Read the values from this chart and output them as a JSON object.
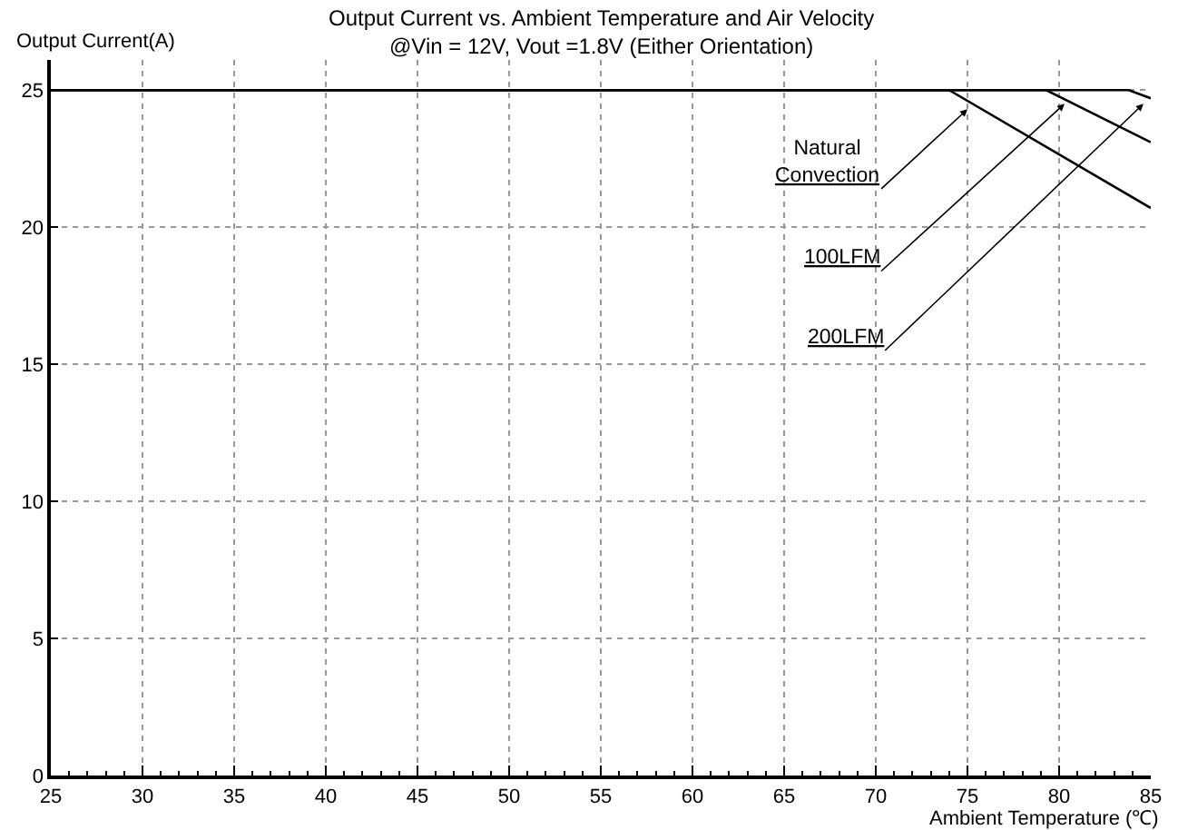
{
  "chart_data": {
    "type": "line",
    "title": "Output Current vs. Ambient Temperature and Air Velocity",
    "subtitle": "@Vin = 12V, Vout =1.8V (Either Orientation)",
    "xlabel": "Ambient Temperature (℃)",
    "ylabel": "Output Current(A)",
    "series": [
      {
        "color": "#000000",
        "x": [
          25,
          74.0,
          85
        ],
        "values": [
          25,
          25,
          20.7
        ]
      },
      {
        "color": "#000000",
        "x": [
          25,
          79.3,
          85
        ],
        "values": [
          25,
          25,
          23.1
        ]
      },
      {
        "color": "#000000",
        "x": [
          25,
          83.8,
          85
        ],
        "values": [
          25,
          25,
          24.7
        ]
      }
    ],
    "annotations": [
      {
        "text": "Natural\nConvection",
        "x": 75.0,
        "y": 24.3
      },
      {
        "text": "100LFM",
        "x": 80.3,
        "y": 24.5
      },
      {
        "text": "200LFM",
        "x": 84.6,
        "y": 24.5
      }
    ],
    "xlim": [
      25,
      85
    ],
    "ylim": [
      0,
      26.1
    ],
    "xticks": [
      25,
      {
        "value": 26,
        "label": null
      },
      {
        "value": 27,
        "label": null
      },
      {
        "value": 28,
        "label": null
      },
      {
        "value": 29,
        "label": null
      },
      30,
      {
        "value": 31,
        "label": null
      },
      {
        "value": 32,
        "label": null
      },
      {
        "value": 33,
        "label": null
      },
      {
        "value": 34,
        "label": null
      },
      35,
      {
        "value": 36,
        "label": null
      },
      {
        "value": 37,
        "label": null
      },
      {
        "value": 38,
        "label": null
      },
      {
        "value": 39,
        "label": null
      },
      40,
      {
        "value": 41,
        "label": null
      },
      {
        "value": 42,
        "label": null
      },
      {
        "value": 43,
        "label": null
      },
      {
        "value": 44,
        "label": null
      },
      45,
      {
        "value": 46,
        "label": null
      },
      {
        "value": 47,
        "label": null
      },
      {
        "value": 48,
        "label": null
      },
      {
        "value": 49,
        "label": null
      },
      50,
      {
        "value": 51,
        "label": null
      },
      {
        "value": 52,
        "label": null
      },
      {
        "value": 53,
        "label": null
      },
      {
        "value": 54,
        "label": null
      },
      55,
      {
        "value": 56,
        "label": null
      },
      {
        "value": 57,
        "label": null
      },
      {
        "value": 58,
        "label": null
      },
      {
        "value": 59,
        "label": null
      },
      60,
      {
        "value": 61,
        "label": null
      },
      {
        "value": 62,
        "label": null
      },
      {
        "value": 63,
        "label": null
      },
      {
        "value": 64,
        "label": null
      },
      65,
      {
        "value": 66,
        "label": null
      },
      {
        "value": 67,
        "label": null
      },
      {
        "value": 68,
        "label": null
      },
      {
        "value": 69,
        "label": null
      },
      70,
      {
        "value": 71,
        "label": null
      },
      {
        "value": 72,
        "label": null
      },
      {
        "value": 73,
        "label": null
      },
      {
        "value": 74,
        "label": null
      },
      75,
      {
        "value": 76,
        "label": null
      },
      {
        "value": 77,
        "label": null
      },
      {
        "value": 78,
        "label": null
      },
      {
        "value": 79,
        "label": null
      },
      80,
      {
        "value": 81,
        "label": null
      },
      {
        "value": 82,
        "label": null
      },
      {
        "value": 83,
        "label": null
      },
      {
        "value": 84,
        "label": null
      },
      85
    ],
    "yticks": [
      0,
      5,
      10,
      15,
      20,
      25
    ],
    "grid": true,
    "marker": "none",
    "line_style": "solid"
  }
}
